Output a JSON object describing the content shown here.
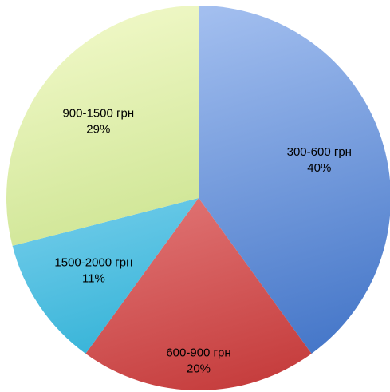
{
  "chart_data": {
    "type": "pie",
    "title": "",
    "start_angle_deg": 0,
    "direction": "clockwise",
    "slices": [
      {
        "label": "300-600 грн",
        "value_label": "40%",
        "value": 40,
        "color_light": "#a7c2f1",
        "color_dark": "#3f72c6"
      },
      {
        "label": "600-900 грн",
        "value_label": "20%",
        "value": 20,
        "color_light": "#f7a3a3",
        "color_dark": "#c43a3a"
      },
      {
        "label": "1500-2000 грн",
        "value_label": "11%",
        "value": 11,
        "color_light": "#a9e3fb",
        "color_dark": "#1aa8cf"
      },
      {
        "label": "900-1500 грн",
        "value_label": "29%",
        "value": 29,
        "color_light": "#eef7c4",
        "color_dark": "#b4d66c"
      }
    ],
    "legend": "none",
    "data_labels": "inside"
  }
}
